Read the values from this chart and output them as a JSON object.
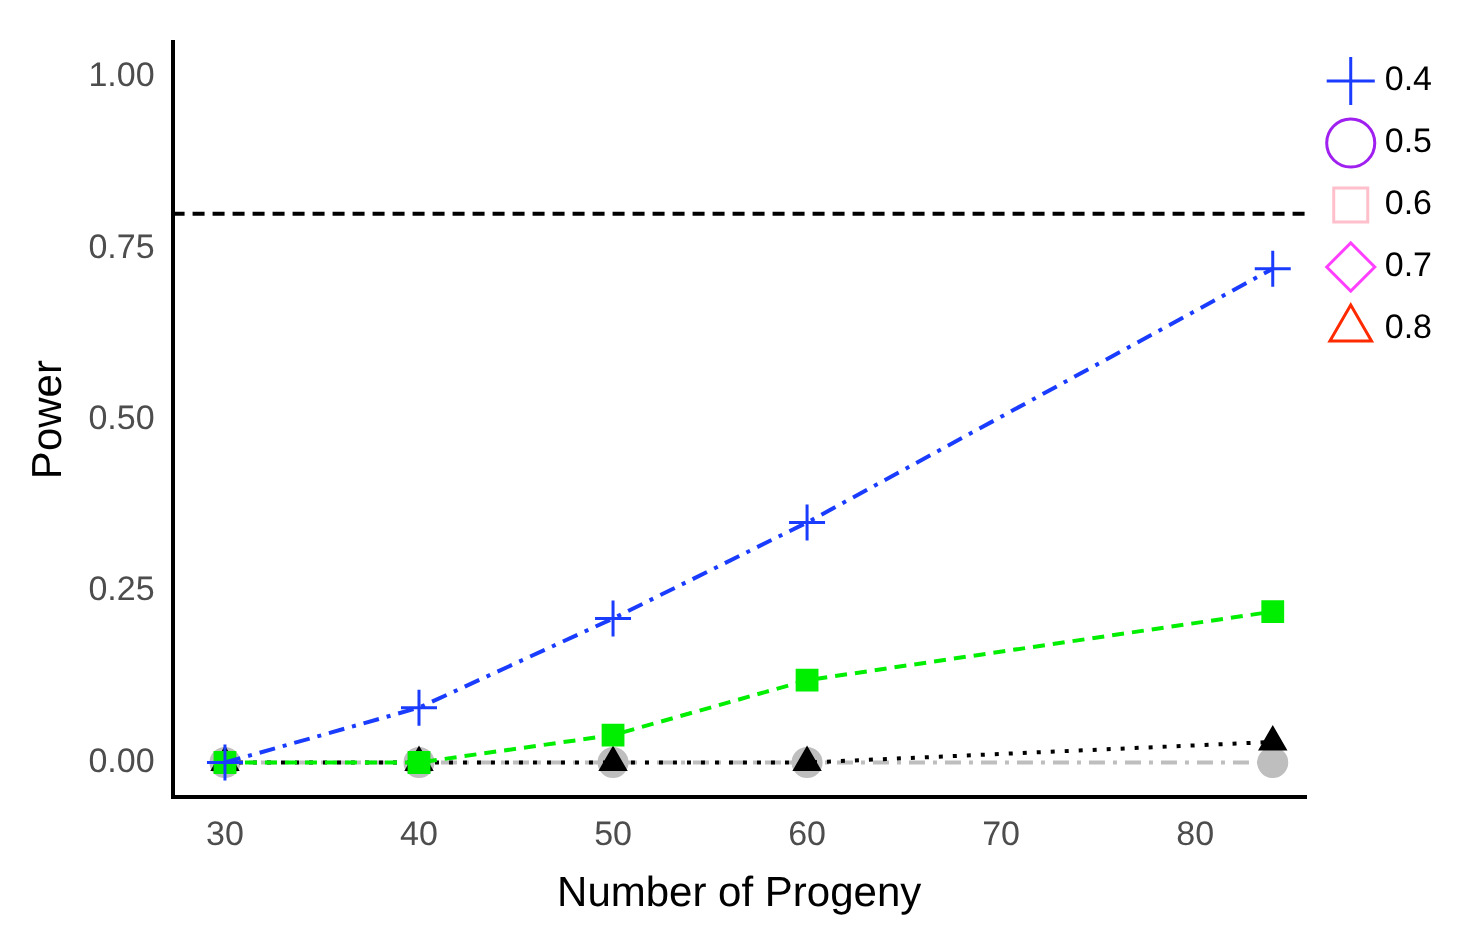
{
  "chart_data": {
    "type": "line",
    "xlabel": "Number of Progeny",
    "ylabel": "Power",
    "x": [
      30,
      40,
      50,
      60,
      84
    ],
    "series": [
      {
        "name": "0.5",
        "color": "#a020f0",
        "values": [
          null,
          null,
          null,
          null,
          null
        ],
        "marker": "circle",
        "line_style": "dashed"
      },
      {
        "name": "0.6",
        "color": "#ffc0cb",
        "values": [
          null,
          null,
          null,
          null,
          null
        ],
        "marker": "square",
        "line_style": "dotted"
      },
      {
        "name": "0.7",
        "color": "#ff40ff",
        "values": [
          null,
          null,
          null,
          null,
          null
        ],
        "marker": "diamond",
        "line_style": "solid"
      },
      {
        "name": "0.8",
        "color": "#ff2a00",
        "values": [
          null,
          null,
          null,
          null,
          null
        ],
        "marker": "triangle",
        "line_style": "dashed"
      },
      {
        "color": "#bebebe",
        "values": [
          0,
          0,
          0,
          0,
          0
        ],
        "marker": "circle",
        "line_style": "dashdot"
      },
      {
        "color": "#000000",
        "values": [
          0,
          0,
          0,
          0,
          0.03
        ],
        "marker": "triangle",
        "line_style": "dotted"
      },
      {
        "color": "#00ee00",
        "values": [
          0,
          0,
          0.04,
          0.12,
          0.22
        ],
        "marker": "square",
        "line_style": "dashed"
      },
      {
        "name": "0.4",
        "color": "#1a3cff",
        "values": [
          0,
          0.08,
          0.21,
          0.35,
          0.72
        ],
        "marker": "cross",
        "line_style": "dashdot"
      }
    ],
    "xlim": [
      27.3,
      85.7
    ],
    "xticks": [
      30,
      40,
      50,
      60,
      70,
      80
    ],
    "ylim": [
      -0.05,
      1.05
    ],
    "yticks": [
      {
        "value": 0,
        "label": "0.00"
      },
      {
        "value": 0.25,
        "label": "0.25"
      },
      {
        "value": 0.5,
        "label": "0.50"
      },
      {
        "value": 0.75,
        "label": "0.75"
      },
      {
        "value": 1,
        "label": "1.00"
      }
    ],
    "ref_lines": [
      {
        "axis": "y",
        "value": 0.8,
        "color": "#000000",
        "line_style": "dashed"
      }
    ],
    "grid": false,
    "legend": "right"
  }
}
